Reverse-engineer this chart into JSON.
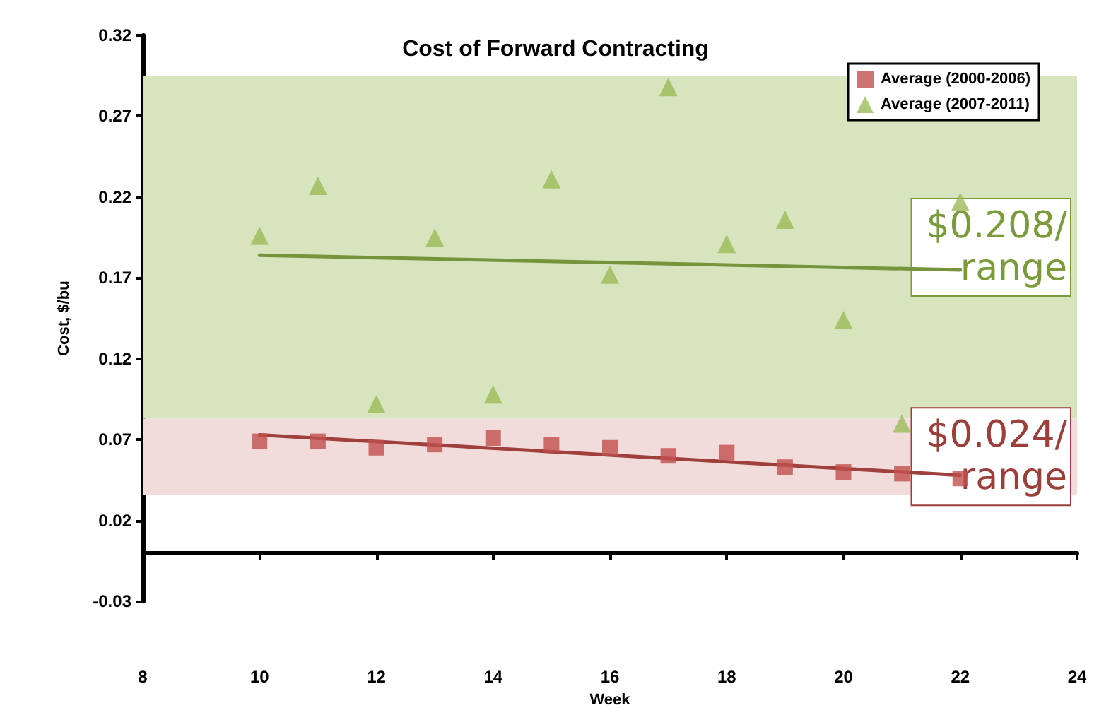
{
  "chart_data": {
    "type": "scatter",
    "title": "Cost of Forward Contracting",
    "xlabel": "Week",
    "ylabel": "Cost, $/bu",
    "x": [
      10,
      11,
      12,
      13,
      14,
      15,
      16,
      17,
      18,
      19,
      20,
      21,
      22
    ],
    "xlim": [
      8,
      24
    ],
    "xticks": [
      8,
      10,
      12,
      14,
      16,
      18,
      20,
      22,
      24
    ],
    "ylim": [
      -0.03,
      0.32
    ],
    "yticks": [
      -0.03,
      0.02,
      0.07,
      0.12,
      0.17,
      0.22,
      0.27,
      0.32
    ],
    "grid": false,
    "legend": "top right",
    "series": [
      {
        "name": "Average (2000-2006)",
        "color": "#c0504d",
        "marker": "square",
        "values": [
          0.069,
          0.069,
          0.065,
          0.067,
          0.071,
          0.067,
          0.065,
          0.06,
          0.062,
          0.053,
          0.05,
          0.049,
          0.046
        ]
      },
      {
        "name": "Average (2007-2011)",
        "color": "#9bbb59",
        "marker": "triangle",
        "values": [
          0.196,
          0.227,
          0.092,
          0.195,
          0.098,
          0.231,
          0.172,
          0.288,
          0.191,
          0.206,
          0.144,
          0.08,
          0.217
        ]
      },
      {
        "type": "line",
        "color": "#a0403d",
        "marker": "none",
        "line_style": "solid",
        "values": [
          0.073,
          null,
          null,
          null,
          null,
          null,
          null,
          null,
          null,
          null,
          null,
          null,
          0.048
        ]
      },
      {
        "type": "line",
        "color": "#77933c",
        "marker": "none",
        "line_style": "solid",
        "values": [
          0.184,
          null,
          null,
          null,
          null,
          null,
          null,
          null,
          null,
          null,
          null,
          null,
          0.175
        ]
      }
    ],
    "bands": [
      {
        "axis": "y",
        "from": 0.083,
        "to": 0.295,
        "color": "#d7e4bd",
        "label": "$0.208/ range"
      },
      {
        "axis": "y",
        "from": 0.036,
        "to": 0.083,
        "color": "#f2dcdb",
        "label": "$0.024/ range"
      }
    ]
  }
}
